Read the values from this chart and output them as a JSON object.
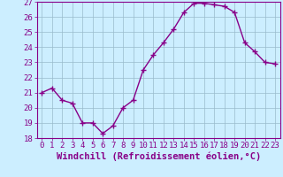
{
  "x": [
    0,
    1,
    2,
    3,
    4,
    5,
    6,
    7,
    8,
    9,
    10,
    11,
    12,
    13,
    14,
    15,
    16,
    17,
    18,
    19,
    20,
    21,
    22,
    23
  ],
  "y": [
    21.0,
    21.3,
    20.5,
    20.3,
    19.0,
    19.0,
    18.3,
    18.8,
    20.0,
    20.5,
    22.5,
    23.5,
    24.3,
    25.2,
    26.3,
    26.9,
    26.9,
    26.8,
    26.7,
    26.3,
    24.3,
    23.7,
    23.0,
    22.9
  ],
  "line_color": "#880088",
  "marker": "+",
  "marker_size": 4,
  "bg_color": "#cceeff",
  "grid_color": "#99bbcc",
  "xlabel": "Windchill (Refroidissement éolien,°C)",
  "ylim": [
    18,
    27
  ],
  "xlim": [
    -0.5,
    23.5
  ],
  "yticks": [
    18,
    19,
    20,
    21,
    22,
    23,
    24,
    25,
    26,
    27
  ],
  "xticks": [
    0,
    1,
    2,
    3,
    4,
    5,
    6,
    7,
    8,
    9,
    10,
    11,
    12,
    13,
    14,
    15,
    16,
    17,
    18,
    19,
    20,
    21,
    22,
    23
  ],
  "tick_label_size": 6.5,
  "xlabel_fontsize": 7.5,
  "line_width": 1.0,
  "marker_lw": 1.0
}
